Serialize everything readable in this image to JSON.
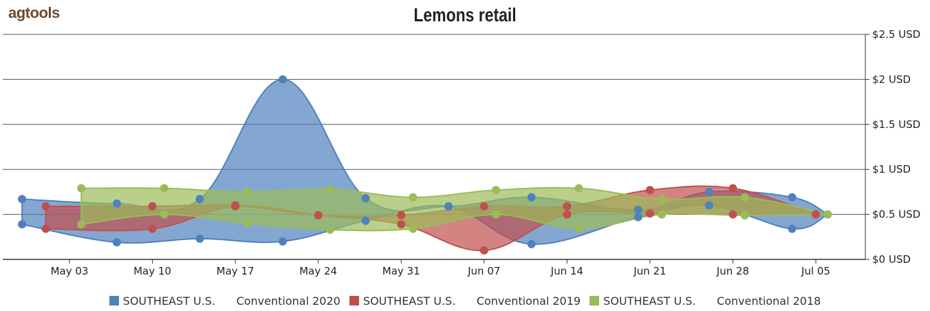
{
  "logo": {
    "text": "agtools"
  },
  "chart_data": {
    "type": "area",
    "title": "Lemons retail",
    "xlabel": "",
    "ylabel": "",
    "x_ticks": [
      "May 03",
      "May 10",
      "May 17",
      "May 24",
      "May 31",
      "Jun 07",
      "Jun 14",
      "Jun 21",
      "Jun 28",
      "Jul 05"
    ],
    "y_ticks": [
      "$0 USD",
      "$0.5 USD",
      "$1 USD",
      "$1.5 USD",
      "$2 USD",
      "$2.5 USD"
    ],
    "ylim": [
      0,
      2.5
    ],
    "y_axis_side": "right",
    "grid": true,
    "legend_position": "bottom",
    "series": [
      {
        "name": "SOUTHEAST U.S. Conventional 2020",
        "legend_parts": [
          "SOUTHEAST U.S.",
          "Conventional 2020"
        ],
        "color": "#4f81bd",
        "high": [
          0.67,
          0.62,
          0.67,
          2.0,
          0.68,
          0.59,
          0.69,
          0.55,
          0.75,
          0.69,
          0.5
        ],
        "low": [
          0.39,
          0.19,
          0.23,
          0.2,
          0.43,
          0.59,
          0.17,
          0.47,
          0.6,
          0.34,
          0.5
        ],
        "dates": [
          "Apr 29",
          "May 07",
          "May 14",
          "May 21",
          "May 28",
          "Jun 04",
          "Jun 11",
          "Jun 20",
          "Jun 26",
          "Jul 03",
          "Jul 06"
        ]
      },
      {
        "name": "SOUTHEAST U.S. Conventional 2019",
        "legend_parts": [
          "SOUTHEAST U.S.",
          "Conventional 2019"
        ],
        "color": "#c0504d",
        "high": [
          0.59,
          0.59,
          0.6,
          0.49,
          0.49,
          0.59,
          0.59,
          0.77,
          0.79,
          0.5
        ],
        "low": [
          0.34,
          0.34,
          0.59,
          0.49,
          0.39,
          0.1,
          0.5,
          0.51,
          0.5,
          0.5
        ],
        "dates": [
          "May 01",
          "May 10",
          "May 17",
          "May 24",
          "May 31",
          "Jun 07",
          "Jun 14",
          "Jun 21",
          "Jun 28",
          "Jul 05"
        ]
      },
      {
        "name": "SOUTHEAST U.S. Conventional 2018",
        "legend_parts": [
          "SOUTHEAST U.S.",
          "Conventional 2018"
        ],
        "color": "#9bbb59",
        "high": [
          0.79,
          0.79,
          0.75,
          0.78,
          0.69,
          0.77,
          0.79,
          0.67,
          0.69,
          0.5
        ],
        "low": [
          0.39,
          0.5,
          0.4,
          0.33,
          0.34,
          0.5,
          0.34,
          0.5,
          0.49,
          0.5
        ],
        "dates": [
          "May 04",
          "May 11",
          "May 18",
          "May 25",
          "Jun 01",
          "Jun 08",
          "Jun 15",
          "Jun 22",
          "Jun 29",
          "Jul 06"
        ]
      }
    ]
  }
}
